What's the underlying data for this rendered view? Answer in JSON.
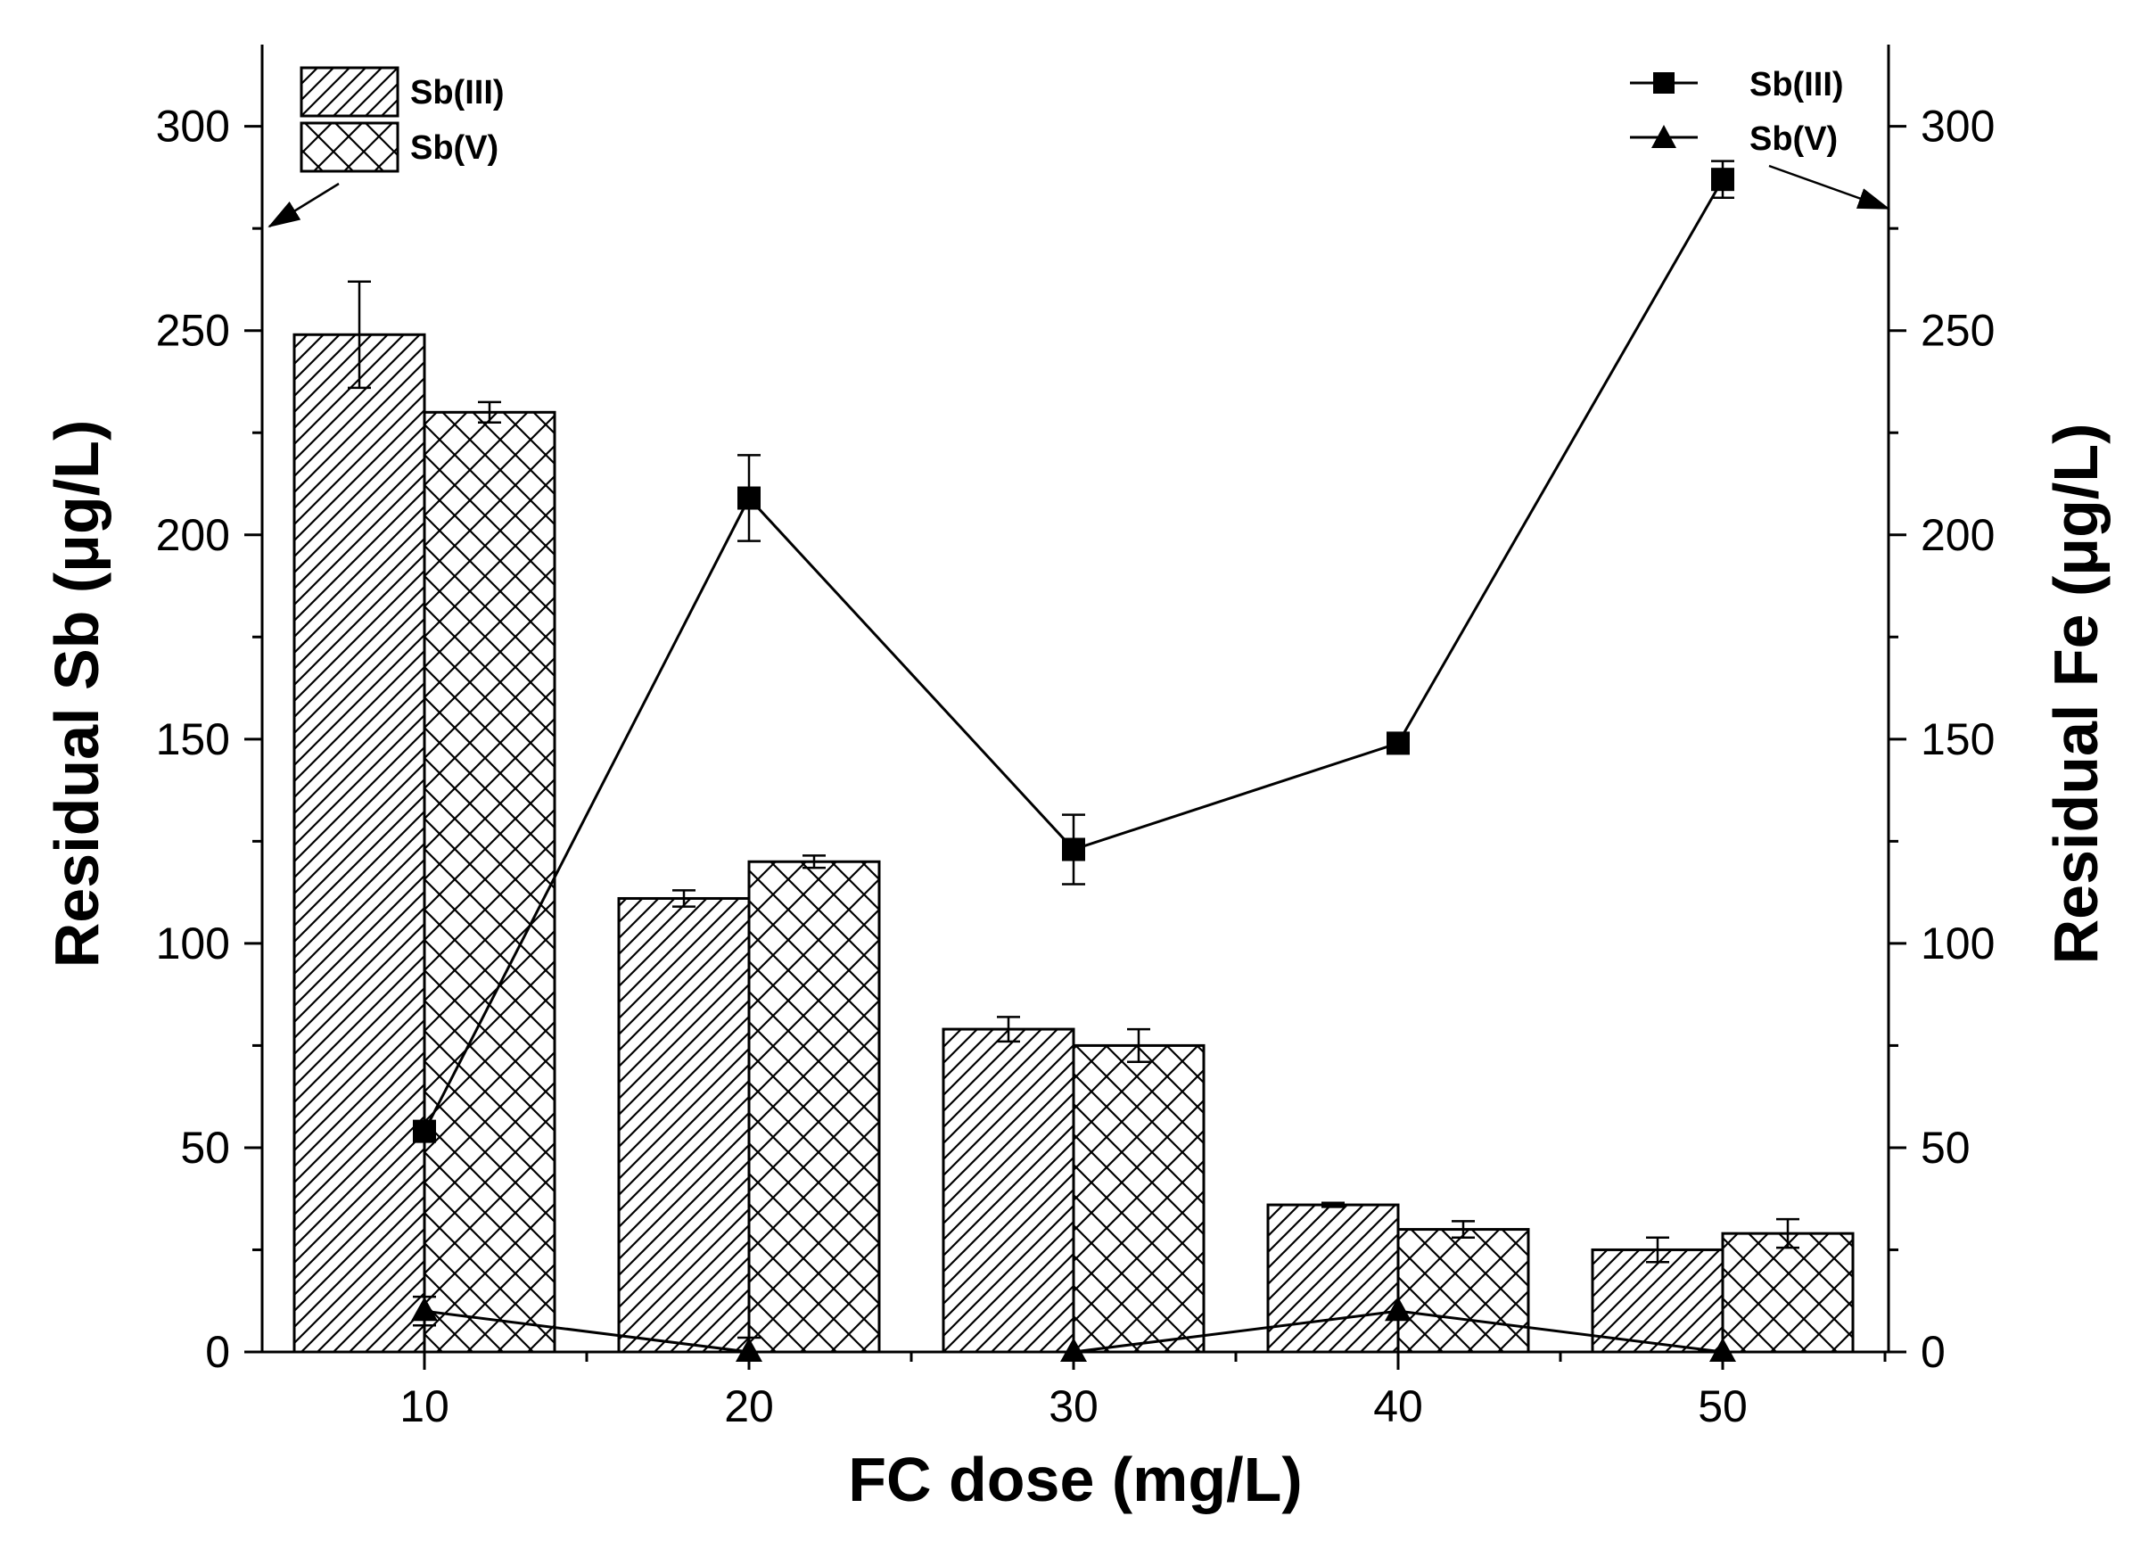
{
  "chart_data": {
    "type": "bar",
    "categories": [
      "10",
      "20",
      "30",
      "40",
      "50"
    ],
    "xlabel": "FC dose (mg/L)",
    "ylabel_left": "Residual Sb (μg/L)",
    "ylabel_right": "Residual Fe (μg/L)",
    "ylim_left": [
      0,
      320
    ],
    "ylim_right": [
      0,
      320
    ],
    "yticks": [
      0,
      50,
      100,
      150,
      200,
      250,
      300
    ],
    "bar_series": [
      {
        "name": "Sb(III)",
        "pattern": "diagonal",
        "axis": "left",
        "values": [
          249,
          111,
          79,
          36,
          25
        ],
        "errors": [
          13,
          2,
          3,
          0.5,
          3
        ]
      },
      {
        "name": "Sb(V)",
        "pattern": "crosshatch",
        "axis": "left",
        "values": [
          230,
          120,
          75,
          30,
          29
        ],
        "errors": [
          2.5,
          1.5,
          4,
          2,
          3.5
        ]
      }
    ],
    "line_series": [
      {
        "name": "Sb(III)",
        "marker": "square",
        "axis": "right",
        "values": [
          54,
          209,
          123,
          149,
          287
        ],
        "errors": [
          0,
          10.5,
          8.5,
          1.5,
          4.5
        ]
      },
      {
        "name": "Sb(V)",
        "marker": "triangle",
        "axis": "right",
        "values": [
          10,
          0,
          0,
          10,
          0
        ],
        "errors": [
          3.5,
          3.5,
          0,
          0,
          0
        ]
      }
    ],
    "legend_bars": {
      "placement": "top-left",
      "labels": [
        "Sb(III)",
        "Sb(V)"
      ]
    },
    "legend_lines": {
      "placement": "top-right",
      "labels": [
        "Sb(III)",
        "Sb(V)"
      ]
    }
  }
}
